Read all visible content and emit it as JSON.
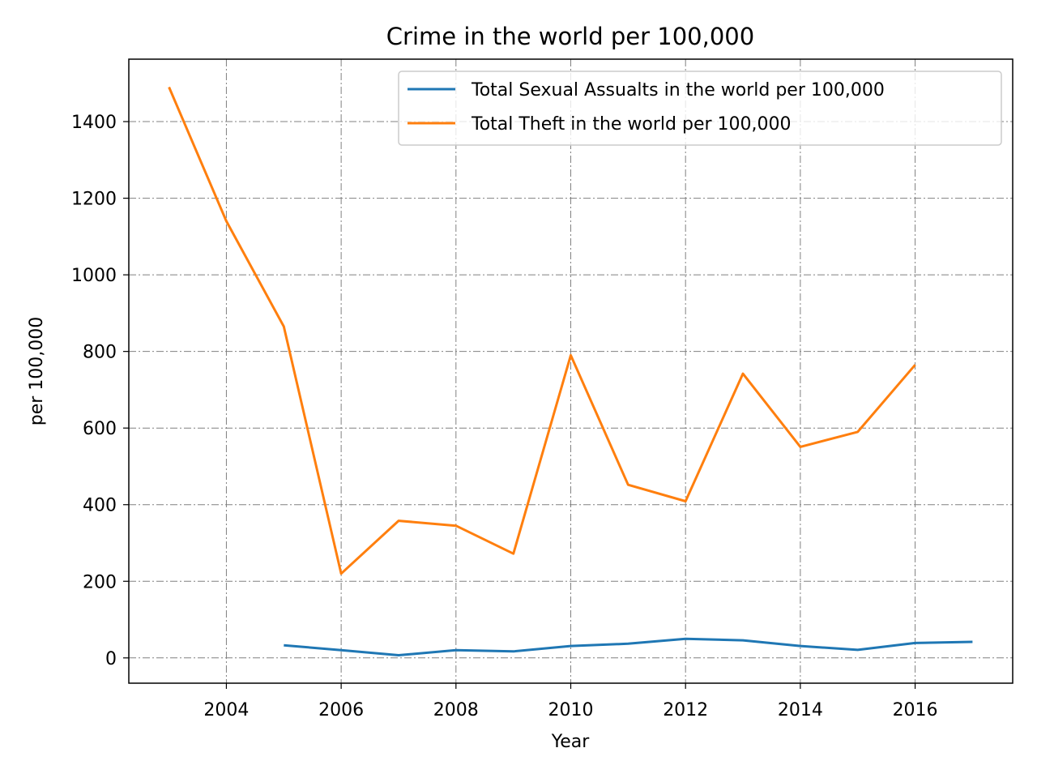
{
  "chart_data": {
    "type": "line",
    "title": "Crime in the world per 100,000",
    "xlabel": "Year",
    "ylabel": "per 100,000",
    "xlim": [
      2002.3,
      2017.7
    ],
    "ylim": [
      -66,
      1563
    ],
    "xticks": [
      2004,
      2006,
      2008,
      2010,
      2012,
      2014,
      2016
    ],
    "yticks": [
      0,
      200,
      400,
      600,
      800,
      1000,
      1200,
      1400
    ],
    "grid": true,
    "legend_position": "top-right",
    "series": [
      {
        "name": "Total Sexual Assualts in the world per 100,000",
        "color": "#1f77b4",
        "x": [
          2005,
          2006,
          2007,
          2008,
          2009,
          2010,
          2011,
          2012,
          2013,
          2014,
          2015,
          2016,
          2017
        ],
        "y": [
          33,
          20,
          7,
          20,
          17,
          31,
          37,
          50,
          46,
          31,
          21,
          39,
          42
        ]
      },
      {
        "name": "Total Theft in the world per 100,000",
        "color": "#ff7f0e",
        "x": [
          2003,
          2004,
          2005,
          2006,
          2007,
          2008,
          2009,
          2010,
          2011,
          2012,
          2013,
          2014,
          2015,
          2016
        ],
        "y": [
          1490,
          1140,
          865,
          220,
          358,
          345,
          272,
          790,
          452,
          409,
          742,
          551,
          590,
          765
        ]
      }
    ]
  }
}
